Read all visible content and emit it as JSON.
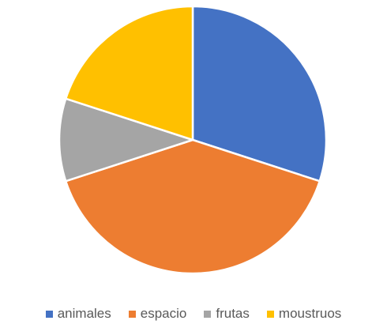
{
  "chart_data": {
    "type": "pie",
    "title": "",
    "categories": [
      "animales",
      "espacio",
      "frutas",
      "moustruos"
    ],
    "values": [
      30,
      40,
      10,
      20
    ],
    "colors": [
      "#4472C4",
      "#ED7D31",
      "#A5A5A5",
      "#FFC000"
    ],
    "legend_position": "bottom"
  }
}
